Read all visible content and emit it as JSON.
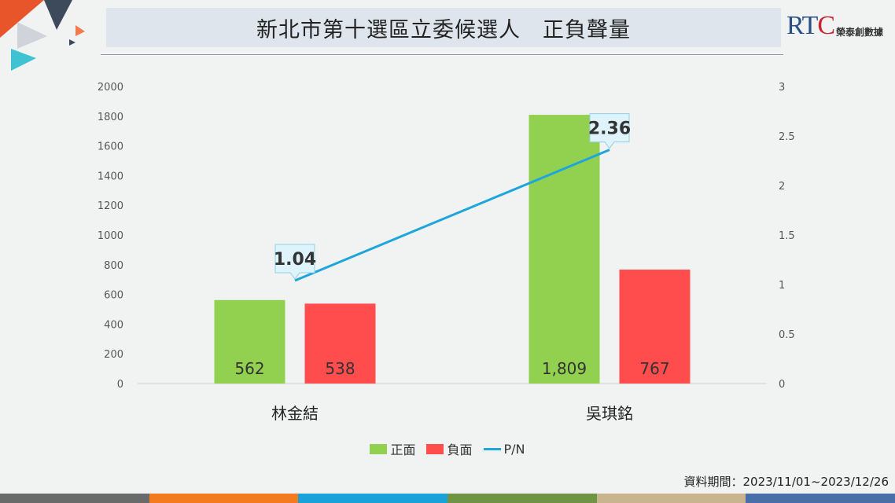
{
  "title": "新北市第十選區立委候選人　正負聲量",
  "logo": {
    "brand_rt": "RT",
    "brand_c": "C",
    "name": "榮泰創數據"
  },
  "period": "資料期間：2023/11/01~2023/12/26",
  "colors": {
    "positive": "#92d050",
    "negative": "#ff4d4d",
    "ratio": "#1ea6dc",
    "bottom_bar": [
      "#6a6a6a",
      "#f47a20",
      "#18a2d7",
      "#6e9444",
      "#c8b48f",
      "#4a6ea8"
    ]
  },
  "chart_data": {
    "type": "bar",
    "categories": [
      "林金結",
      "吳琪銘"
    ],
    "series": [
      {
        "name": "正面",
        "values": [
          562,
          1809
        ],
        "labels": [
          "562",
          "1,809"
        ],
        "color": "#92d050"
      },
      {
        "name": "負面",
        "values": [
          538,
          767
        ],
        "labels": [
          "538",
          "767"
        ],
        "color": "#ff4d4d"
      }
    ],
    "line_series": {
      "name": "P/N",
      "values": [
        1.04,
        2.36
      ],
      "labels": [
        "1.04",
        "2.36"
      ],
      "color": "#1ea6dc",
      "axis": "right"
    },
    "ylim": [
      0,
      2000
    ],
    "y_ticks": [
      "0",
      "200",
      "400",
      "600",
      "800",
      "1000",
      "1200",
      "1400",
      "1600",
      "1800",
      "2000"
    ],
    "y2lim": [
      0,
      3
    ],
    "y2_ticks": [
      "0",
      "0.5",
      "1",
      "1.5",
      "2",
      "2.5",
      "3"
    ],
    "legend_position": "bottom",
    "grid": false
  }
}
